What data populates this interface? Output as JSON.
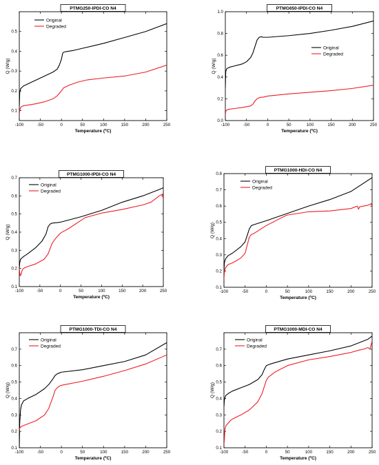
{
  "chart_data": [
    {
      "type": "line",
      "title": "PTMG250-IPDI-CO N4",
      "xlabel": "Temperature (ºC)",
      "ylabel": "Q (W/g)",
      "xlim": [
        -100,
        250
      ],
      "ylim": [
        0.05,
        0.6
      ],
      "xticks": [
        -100,
        -50,
        0,
        50,
        100,
        150,
        200,
        250
      ],
      "yticks": [
        0.1,
        0.2,
        0.3,
        0.4,
        0.5
      ],
      "ytick_labels": [
        "0.1",
        "0.2",
        "0.3",
        "0.4",
        "0.5"
      ],
      "legend": "top-left",
      "grid": false,
      "series": [
        {
          "name": "Original",
          "color": "#000000",
          "x": [
            -100,
            -99,
            -97,
            -95,
            -90,
            -80,
            -60,
            -40,
            -20,
            -10,
            -5,
            0,
            3,
            5,
            10,
            30,
            50,
            100,
            150,
            200,
            250
          ],
          "y": [
            0.12,
            0.19,
            0.21,
            0.215,
            0.225,
            0.235,
            0.255,
            0.275,
            0.295,
            0.31,
            0.33,
            0.36,
            0.39,
            0.395,
            0.398,
            0.405,
            0.415,
            0.44,
            0.47,
            0.5,
            0.54
          ]
        },
        {
          "name": "Degraded",
          "color": "#ee1c24",
          "x": [
            -100,
            -99,
            -97,
            -95,
            -90,
            -80,
            -60,
            -40,
            -20,
            -10,
            0,
            5,
            10,
            20,
            40,
            60,
            100,
            150,
            200,
            250
          ],
          "y": [
            0.08,
            0.1,
            0.115,
            0.12,
            0.125,
            0.128,
            0.135,
            0.145,
            0.16,
            0.175,
            0.2,
            0.215,
            0.22,
            0.23,
            0.245,
            0.255,
            0.265,
            0.275,
            0.295,
            0.33
          ]
        }
      ]
    },
    {
      "type": "line",
      "title": "PTMG650-IPDI-CO N4",
      "xlabel": "Temperature (ºC)",
      "ylabel": "Q (W/g)",
      "xlim": [
        -100,
        250
      ],
      "ylim": [
        0,
        1.0
      ],
      "xticks": [
        -100,
        -50,
        0,
        50,
        100,
        150,
        200,
        250
      ],
      "yticks": [
        0.0,
        0.2,
        0.4,
        0.6,
        0.8,
        1.0
      ],
      "ytick_labels": [
        "0.0",
        "0.2",
        "0.4",
        "0.6",
        "0.8",
        "1.0"
      ],
      "legend": "center-right",
      "grid": false,
      "series": [
        {
          "name": "Original",
          "color": "#000000",
          "x": [
            -100,
            -99,
            -97,
            -95,
            -90,
            -80,
            -60,
            -50,
            -40,
            -35,
            -30,
            -25,
            -20,
            -15,
            -10,
            0,
            50,
            100,
            150,
            200,
            250
          ],
          "y": [
            0.3,
            0.45,
            0.475,
            0.48,
            0.49,
            0.5,
            0.52,
            0.54,
            0.58,
            0.62,
            0.68,
            0.74,
            0.765,
            0.77,
            0.765,
            0.765,
            0.78,
            0.8,
            0.83,
            0.865,
            0.915
          ]
        },
        {
          "name": "Degraded",
          "color": "#ee1c24",
          "x": [
            -100,
            -99,
            -97,
            -95,
            -90,
            -80,
            -60,
            -40,
            -35,
            -30,
            -25,
            -20,
            -15,
            -10,
            0,
            50,
            100,
            150,
            200,
            250
          ],
          "y": [
            0.05,
            0.085,
            0.095,
            0.1,
            0.105,
            0.11,
            0.12,
            0.135,
            0.15,
            0.18,
            0.2,
            0.21,
            0.215,
            0.215,
            0.225,
            0.245,
            0.26,
            0.275,
            0.295,
            0.325
          ]
        }
      ]
    },
    {
      "type": "line",
      "title": "PTMG1000-IPDI-CO N4",
      "xlabel": "Temperature (ºC)",
      "ylabel": "Q (W/g)",
      "xlim": [
        -100,
        250
      ],
      "ylim": [
        0.1,
        0.7
      ],
      "xticks": [
        -100,
        -50,
        0,
        50,
        100,
        150,
        200,
        250
      ],
      "yticks": [
        0.1,
        0.2,
        0.3,
        0.4,
        0.5,
        0.6,
        0.7
      ],
      "ytick_labels": [
        "0.1",
        "0.2",
        "0.3",
        "0.4",
        "0.5",
        "0.6",
        "0.7"
      ],
      "legend": "top-left",
      "grid": false,
      "series": [
        {
          "name": "Original",
          "color": "#000000",
          "x": [
            -100,
            -99,
            -97,
            -95,
            -90,
            -80,
            -60,
            -45,
            -35,
            -30,
            -25,
            -20,
            -10,
            0,
            50,
            100,
            150,
            200,
            240,
            250
          ],
          "y": [
            0.2,
            0.23,
            0.25,
            0.255,
            0.265,
            0.28,
            0.315,
            0.35,
            0.39,
            0.43,
            0.445,
            0.45,
            0.452,
            0.455,
            0.485,
            0.52,
            0.565,
            0.6,
            0.635,
            0.645
          ]
        },
        {
          "name": "Degraded",
          "color": "#ee1c24",
          "x": [
            -100,
            -98,
            -96,
            -93,
            -90,
            -80,
            -60,
            -40,
            -30,
            -20,
            -10,
            0,
            20,
            40,
            60,
            100,
            150,
            200,
            220,
            240,
            248,
            250
          ],
          "y": [
            0.2,
            0.16,
            0.165,
            0.19,
            0.2,
            0.21,
            0.225,
            0.25,
            0.28,
            0.34,
            0.37,
            0.395,
            0.42,
            0.45,
            0.48,
            0.505,
            0.525,
            0.55,
            0.565,
            0.6,
            0.61,
            0.58
          ]
        }
      ]
    },
    {
      "type": "line",
      "title": "PTMG1000-HDI-CO N4",
      "xlabel": "Temperature (ºC)",
      "ylabel": "Q (W/g)",
      "xlim": [
        -100,
        250
      ],
      "ylim": [
        0.1,
        0.8
      ],
      "xticks": [
        -100,
        -50,
        0,
        50,
        100,
        150,
        200,
        250
      ],
      "yticks": [
        0.1,
        0.2,
        0.3,
        0.4,
        0.5,
        0.6,
        0.7,
        0.8
      ],
      "ytick_labels": [
        "0.1",
        "0.2",
        "0.3",
        "0.4",
        "0.5",
        "0.6",
        "0.7",
        "0.8"
      ],
      "legend": "top-left",
      "grid": false,
      "series": [
        {
          "name": "Original",
          "color": "#000000",
          "x": [
            -100,
            -99,
            -97,
            -95,
            -90,
            -80,
            -60,
            -50,
            -45,
            -40,
            -35,
            -30,
            0,
            50,
            100,
            150,
            200,
            250
          ],
          "y": [
            0.2,
            0.25,
            0.27,
            0.28,
            0.295,
            0.31,
            0.35,
            0.38,
            0.42,
            0.46,
            0.48,
            0.485,
            0.51,
            0.555,
            0.6,
            0.64,
            0.69,
            0.775
          ]
        },
        {
          "name": "Degraded",
          "color": "#ee1c24",
          "x": [
            -100,
            -99,
            -97,
            -95,
            -90,
            -80,
            -60,
            -50,
            -45,
            -40,
            -35,
            -30,
            0,
            45,
            50,
            100,
            150,
            200,
            215,
            218,
            220,
            240,
            248,
            250
          ],
          "y": [
            0.15,
            0.19,
            0.215,
            0.225,
            0.24,
            0.25,
            0.28,
            0.31,
            0.36,
            0.41,
            0.425,
            0.43,
            0.48,
            0.54,
            0.545,
            0.565,
            0.57,
            0.585,
            0.6,
            0.58,
            0.595,
            0.605,
            0.615,
            0.6
          ]
        }
      ]
    },
    {
      "type": "line",
      "title": "PTMG1000-TDI-CO N4",
      "xlabel": "Temperature (ºC)",
      "ylabel": "Q (W/g)",
      "xlim": [
        -100,
        250
      ],
      "ylim": [
        0.1,
        0.8
      ],
      "xticks": [
        -100,
        -50,
        0,
        50,
        100,
        150,
        200,
        250
      ],
      "yticks": [
        0.1,
        0.2,
        0.3,
        0.4,
        0.5,
        0.6,
        0.7
      ],
      "ytick_labels": [
        "0.1",
        "0.2",
        "0.3",
        "0.4",
        "0.5",
        "0.6",
        "0.7"
      ],
      "legend": "top-left",
      "grid": false,
      "series": [
        {
          "name": "Original",
          "color": "#000000",
          "x": [
            -100,
            -99,
            -97,
            -95,
            -90,
            -80,
            -60,
            -40,
            -30,
            -20,
            -15,
            -10,
            -5,
            0,
            50,
            100,
            150,
            200,
            250
          ],
          "y": [
            0.1,
            0.25,
            0.33,
            0.36,
            0.385,
            0.4,
            0.425,
            0.46,
            0.485,
            0.52,
            0.54,
            0.55,
            0.555,
            0.56,
            0.575,
            0.6,
            0.625,
            0.665,
            0.74
          ]
        },
        {
          "name": "Degraded",
          "color": "#ee1c24",
          "x": [
            -100,
            -99,
            -97,
            -95,
            -90,
            -80,
            -60,
            -40,
            -30,
            -20,
            -15,
            -10,
            -5,
            0,
            50,
            100,
            150,
            200,
            250
          ],
          "y": [
            0.2,
            0.22,
            0.225,
            0.23,
            0.235,
            0.245,
            0.265,
            0.3,
            0.34,
            0.41,
            0.45,
            0.465,
            0.475,
            0.48,
            0.505,
            0.535,
            0.57,
            0.61,
            0.665
          ]
        }
      ]
    },
    {
      "type": "line",
      "title": "PTMG1000-MDI-CO N4",
      "xlabel": "Temperature (ºC)",
      "ylabel": "Q (W/g)",
      "xlim": [
        -100,
        250
      ],
      "ylim": [
        0.1,
        0.8
      ],
      "xticks": [
        -100,
        -50,
        0,
        50,
        100,
        150,
        200,
        250
      ],
      "yticks": [
        0.1,
        0.2,
        0.3,
        0.4,
        0.5,
        0.6,
        0.7
      ],
      "ytick_labels": [
        "0.1",
        "0.2",
        "0.3",
        "0.4",
        "0.5",
        "0.6",
        "0.7"
      ],
      "legend": "top-left",
      "grid": false,
      "series": [
        {
          "name": "Original",
          "color": "#000000",
          "x": [
            -100,
            -99,
            -97,
            -95,
            -90,
            -80,
            -60,
            -40,
            -20,
            -10,
            -5,
            0,
            5,
            10,
            50,
            100,
            150,
            200,
            240,
            250
          ],
          "y": [
            0.35,
            0.39,
            0.41,
            0.42,
            0.43,
            0.445,
            0.465,
            0.485,
            0.515,
            0.545,
            0.575,
            0.6,
            0.605,
            0.61,
            0.64,
            0.665,
            0.69,
            0.72,
            0.76,
            0.78
          ]
        },
        {
          "name": "Degraded",
          "color": "#ee1c24",
          "x": [
            -100,
            -99,
            -98,
            -97,
            -95,
            -90,
            -85,
            -80,
            -60,
            -40,
            -20,
            -10,
            -5,
            0,
            5,
            10,
            20,
            50,
            100,
            150,
            200,
            220,
            230,
            240,
            245,
            248,
            250
          ],
          "y": [
            0.12,
            0.15,
            0.2,
            0.22,
            0.235,
            0.25,
            0.265,
            0.275,
            0.3,
            0.33,
            0.38,
            0.43,
            0.47,
            0.51,
            0.53,
            0.54,
            0.56,
            0.6,
            0.635,
            0.655,
            0.68,
            0.695,
            0.7,
            0.71,
            0.7,
            0.73,
            0.75
          ]
        }
      ]
    }
  ]
}
